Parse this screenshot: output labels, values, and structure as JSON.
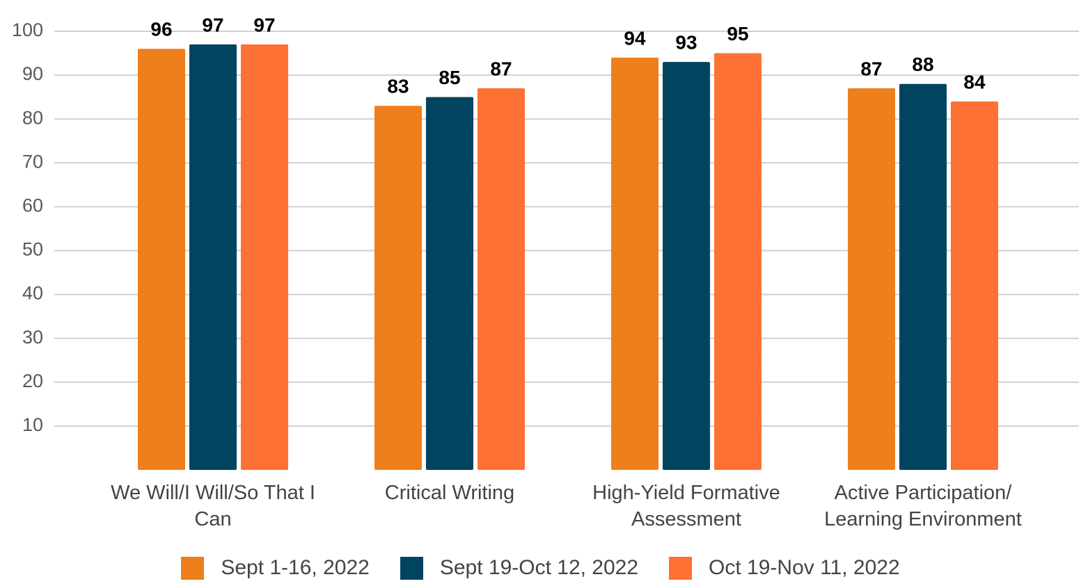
{
  "chart_data": {
    "type": "bar",
    "categories": [
      "We Will/I Will/So That I Can",
      "Critical Writing",
      "High-Yield Formative Assessment",
      "Active Participation/ Learning Environment"
    ],
    "series": [
      {
        "name": "Sept 1-16, 2022",
        "color": "#ee7f1b",
        "values": [
          96,
          83,
          94,
          87
        ]
      },
      {
        "name": "Sept 19-Oct 12, 2022",
        "color": "#01445f",
        "values": [
          97,
          85,
          93,
          88
        ]
      },
      {
        "name": "Oct 19-Nov 11, 2022",
        "color": "#fd7134",
        "values": [
          97,
          87,
          95,
          84
        ]
      }
    ],
    "ylim": [
      0,
      100
    ],
    "yticks": [
      10,
      20,
      30,
      40,
      50,
      60,
      70,
      80,
      90,
      100
    ],
    "grid": true,
    "legend": "bottom"
  }
}
